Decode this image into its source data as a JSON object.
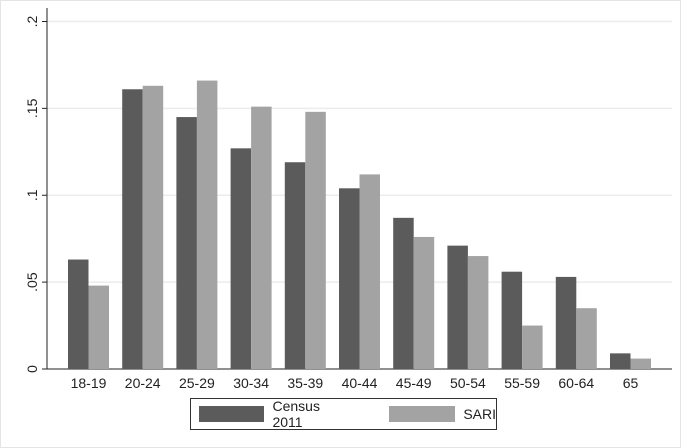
{
  "chart_data": {
    "type": "bar",
    "categories": [
      "18-19",
      "20-24",
      "25-29",
      "30-34",
      "35-39",
      "40-44",
      "45-49",
      "50-54",
      "55-59",
      "60-64",
      "65"
    ],
    "series": [
      {
        "name": "Census 2011",
        "color": "#5b5b5b",
        "values": [
          0.063,
          0.161,
          0.145,
          0.127,
          0.119,
          0.104,
          0.087,
          0.071,
          0.056,
          0.053,
          0.009
        ]
      },
      {
        "name": "SARI",
        "color": "#a3a3a3",
        "values": [
          0.048,
          0.163,
          0.166,
          0.151,
          0.148,
          0.112,
          0.076,
          0.065,
          0.025,
          0.035,
          0.006
        ]
      }
    ],
    "title": "",
    "xlabel": "",
    "ylabel": "",
    "ylim": [
      0,
      0.2
    ],
    "yticks": [
      0,
      0.05,
      0.1,
      0.15,
      0.2
    ],
    "ytick_labels": [
      "0",
      ".05",
      ".1",
      ".15",
      ".2"
    ],
    "grid": true,
    "legend_position": "bottom"
  }
}
